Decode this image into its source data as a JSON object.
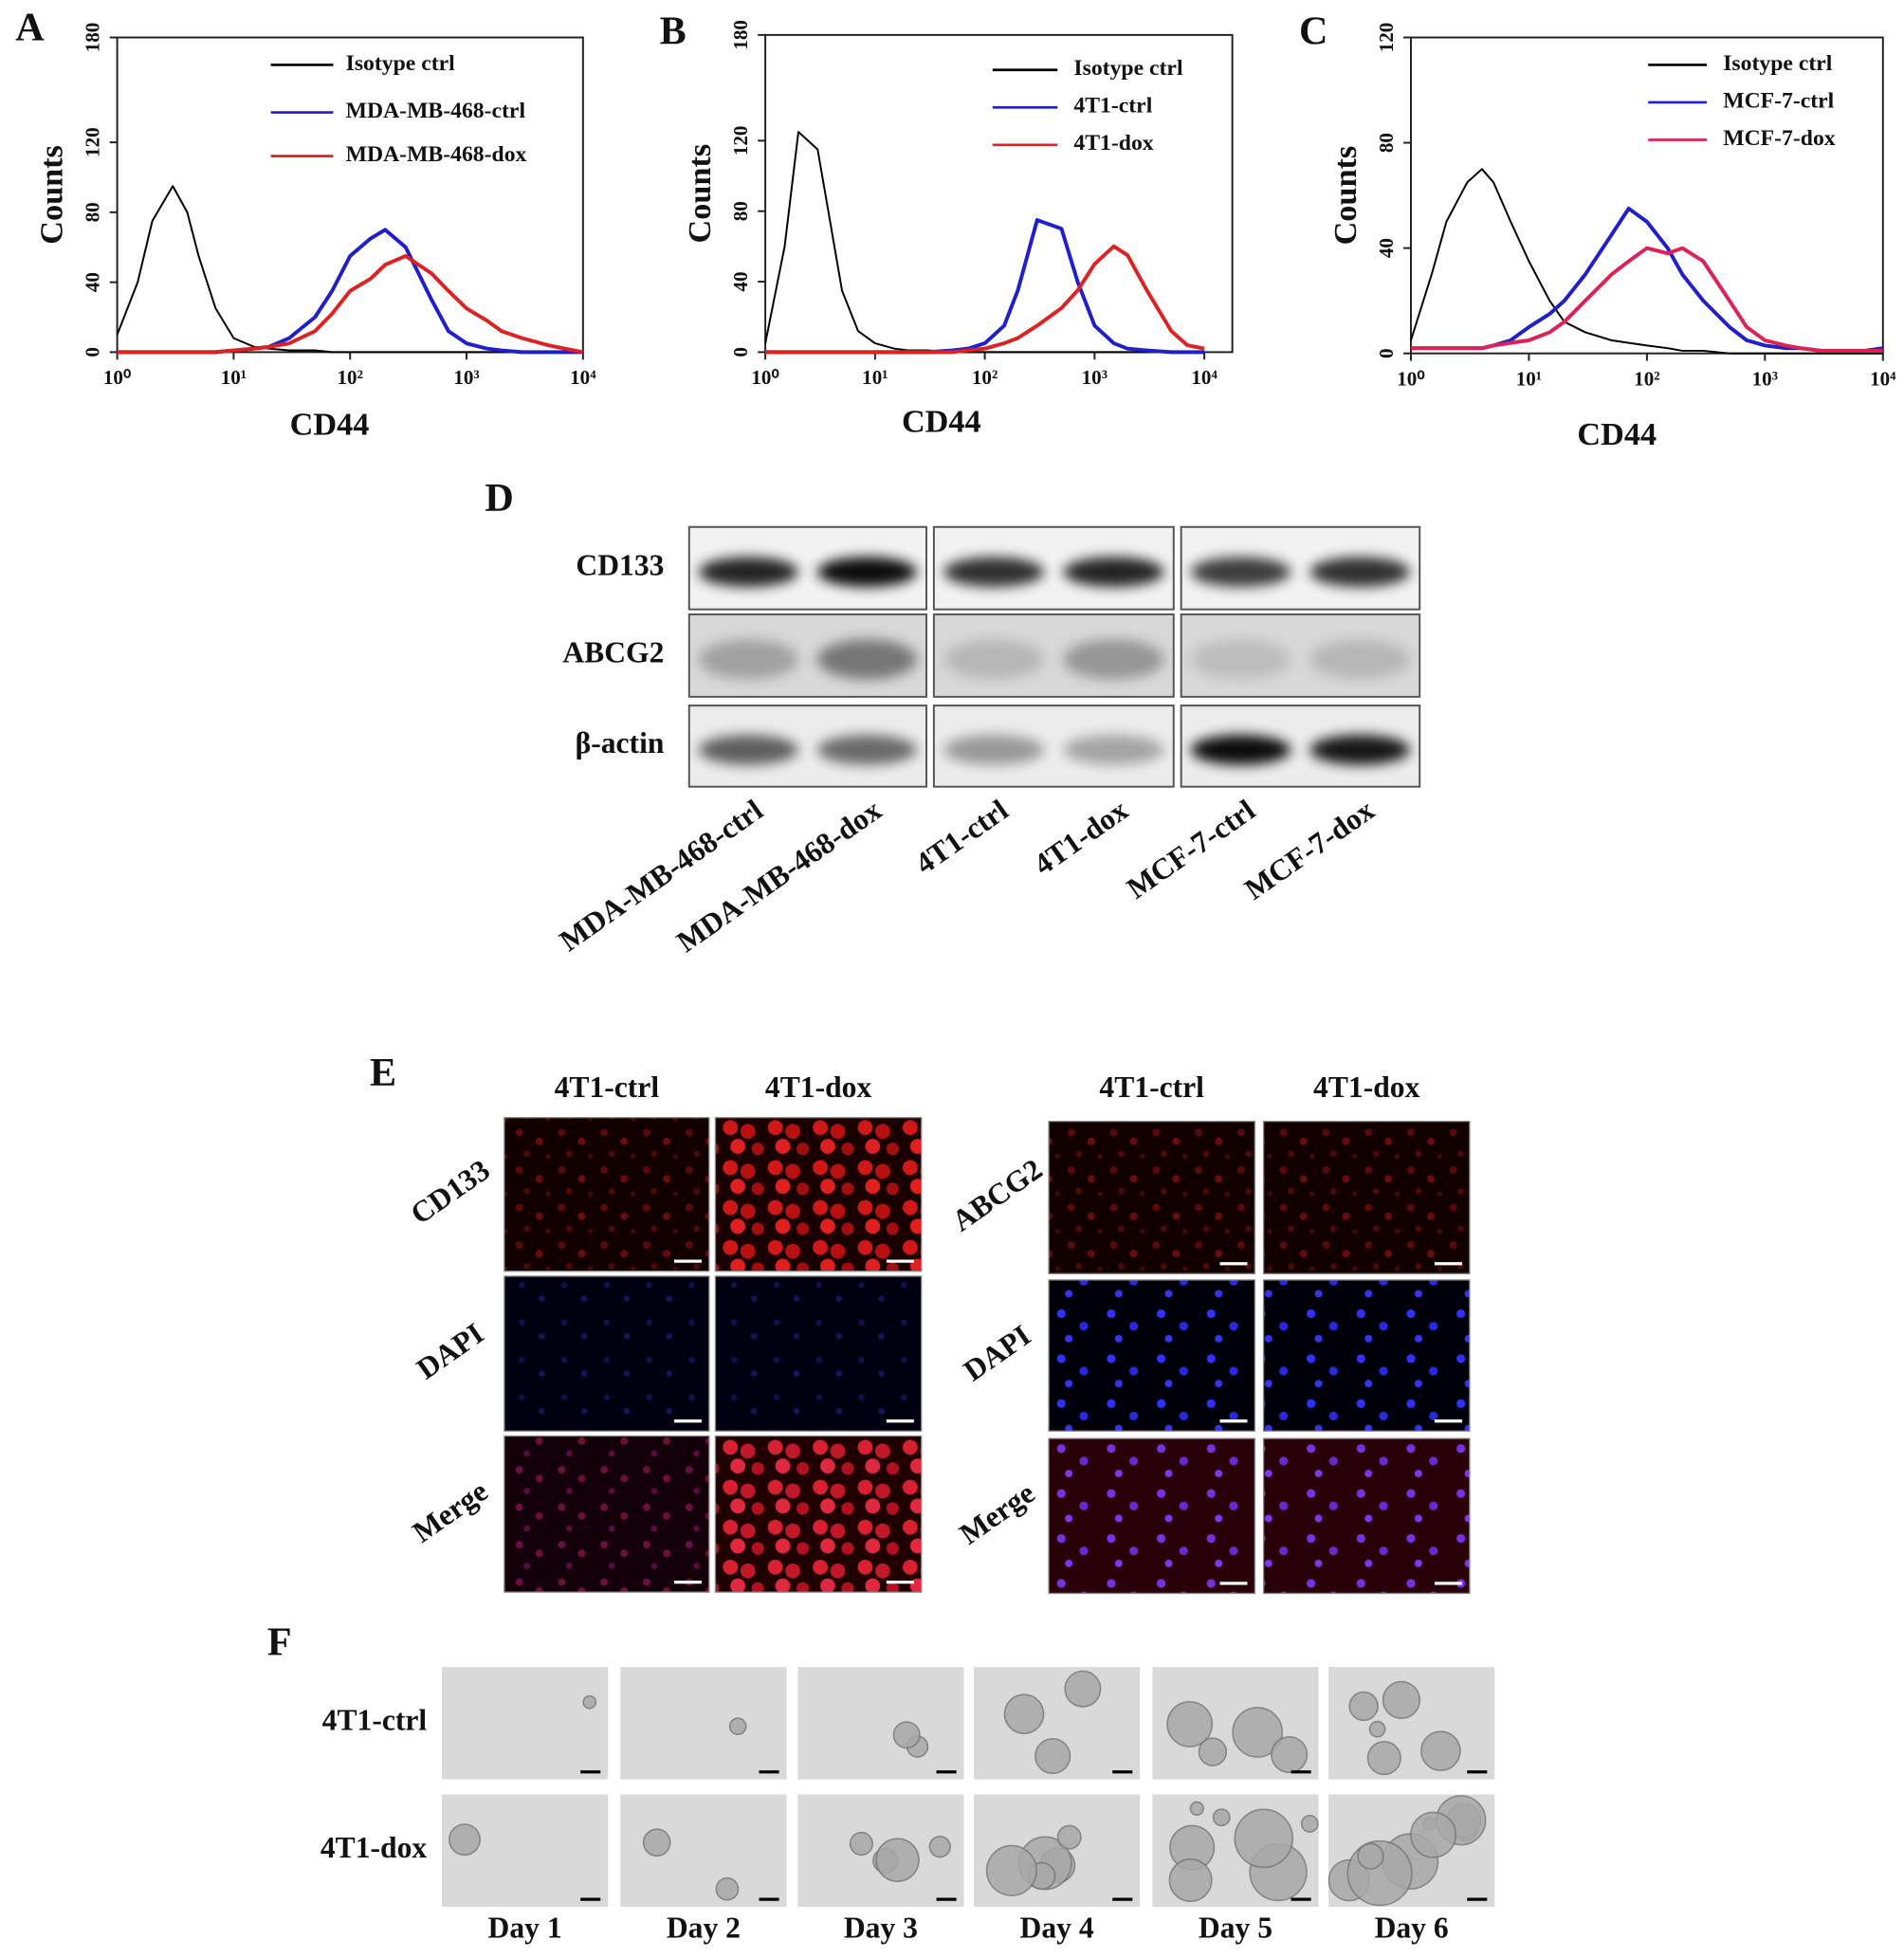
{
  "chart_data": [
    {
      "type": "line",
      "panel_label": "A",
      "x_label": "CD44",
      "y_label": "Counts",
      "log_x": true,
      "legend": "upper right",
      "x": [
        1,
        1.5,
        2,
        3,
        4,
        5,
        7,
        10,
        15,
        20,
        30,
        50,
        70,
        100,
        150,
        200,
        300,
        500,
        700,
        1000,
        1500,
        2000,
        3000,
        5000,
        7000,
        10000
      ],
      "xlim": [
        1,
        10000
      ],
      "xticks": [
        {
          "value": 1,
          "label": "10⁰"
        },
        {
          "value": 10,
          "label": "10¹"
        },
        {
          "value": 100,
          "label": "10²"
        },
        {
          "value": 1000,
          "label": "10³"
        },
        {
          "value": 10000,
          "label": "10⁴"
        }
      ],
      "ylim": [
        0,
        180
      ],
      "yticks": [
        0,
        40,
        80,
        120,
        180
      ],
      "series": [
        {
          "name": "Isotype ctrl",
          "color": "#000000",
          "values": [
            10,
            40,
            75,
            95,
            80,
            55,
            25,
            8,
            3,
            2,
            1,
            1,
            0,
            0,
            0,
            0,
            0,
            0,
            0,
            0,
            0,
            0,
            0,
            0,
            0,
            0
          ]
        },
        {
          "name": "MDA-MB-468-ctrl",
          "color": "#1f1fcc",
          "values": [
            0,
            0,
            0,
            0,
            0,
            0,
            0,
            1,
            2,
            3,
            8,
            20,
            35,
            55,
            65,
            70,
            60,
            30,
            12,
            5,
            2,
            1,
            0,
            0,
            0,
            0
          ]
        },
        {
          "name": "MDA-MB-468-dox",
          "color": "#dd2222",
          "values": [
            0,
            0,
            0,
            0,
            0,
            0,
            0,
            1,
            2,
            3,
            5,
            12,
            22,
            35,
            42,
            50,
            55,
            45,
            35,
            25,
            18,
            12,
            8,
            4,
            2,
            0
          ]
        }
      ]
    },
    {
      "type": "line",
      "panel_label": "B",
      "x_label": "CD44",
      "y_label": "Counts",
      "log_x": true,
      "legend": "upper right",
      "x": [
        1,
        1.5,
        2,
        3,
        4,
        5,
        7,
        10,
        15,
        20,
        30,
        50,
        70,
        100,
        150,
        200,
        300,
        500,
        700,
        1000,
        1500,
        2000,
        3000,
        5000,
        7000,
        10000
      ],
      "xlim": [
        1,
        18000
      ],
      "xticks": [
        {
          "value": 1,
          "label": "10⁰"
        },
        {
          "value": 10,
          "label": "10¹"
        },
        {
          "value": 100,
          "label": "10²"
        },
        {
          "value": 1000,
          "label": "10³"
        },
        {
          "value": 10000,
          "label": "10⁴"
        }
      ],
      "ylim": [
        0,
        180
      ],
      "yticks": [
        0,
        40,
        80,
        120,
        180
      ],
      "series": [
        {
          "name": "Isotype ctrl",
          "color": "#000000",
          "values": [
            5,
            60,
            125,
            115,
            70,
            35,
            12,
            5,
            2,
            1,
            1,
            0,
            0,
            0,
            0,
            0,
            0,
            0,
            0,
            0,
            0,
            0,
            0,
            0,
            0,
            0
          ]
        },
        {
          "name": "4T1-ctrl",
          "color": "#1f1fcc",
          "values": [
            0,
            0,
            0,
            0,
            0,
            0,
            0,
            0,
            0,
            0,
            0,
            1,
            2,
            5,
            15,
            35,
            75,
            70,
            40,
            15,
            5,
            2,
            1,
            0,
            0,
            0
          ]
        },
        {
          "name": "4T1-dox",
          "color": "#dd2222",
          "values": [
            0,
            0,
            0,
            0,
            0,
            0,
            0,
            0,
            0,
            0,
            0,
            0,
            1,
            2,
            5,
            8,
            15,
            25,
            35,
            50,
            60,
            55,
            35,
            12,
            4,
            2
          ]
        }
      ]
    },
    {
      "type": "line",
      "panel_label": "C",
      "x_label": "CD44",
      "y_label": "Counts",
      "log_x": true,
      "legend": "upper right",
      "x": [
        1,
        1.5,
        2,
        3,
        4,
        5,
        7,
        10,
        15,
        20,
        30,
        50,
        70,
        100,
        150,
        200,
        300,
        500,
        700,
        1000,
        1500,
        2000,
        3000,
        5000,
        7000,
        10000
      ],
      "xlim": [
        1,
        10000
      ],
      "xticks": [
        {
          "value": 1,
          "label": "10⁰"
        },
        {
          "value": 10,
          "label": "10¹"
        },
        {
          "value": 100,
          "label": "10²"
        },
        {
          "value": 1000,
          "label": "10³"
        },
        {
          "value": 10000,
          "label": "10⁴"
        }
      ],
      "ylim": [
        0,
        120
      ],
      "yticks": [
        0,
        40,
        80,
        120
      ],
      "series": [
        {
          "name": "Isotype ctrl",
          "color": "#000000",
          "values": [
            5,
            30,
            50,
            65,
            70,
            65,
            50,
            35,
            20,
            12,
            8,
            5,
            4,
            3,
            2,
            1,
            1,
            0,
            0,
            0,
            0,
            0,
            0,
            0,
            0,
            0
          ]
        },
        {
          "name": "MCF-7-ctrl",
          "color": "#1f1fcc",
          "values": [
            2,
            2,
            2,
            2,
            2,
            3,
            5,
            10,
            15,
            20,
            30,
            45,
            55,
            50,
            40,
            30,
            20,
            10,
            5,
            3,
            2,
            2,
            1,
            1,
            1,
            2
          ]
        },
        {
          "name": "MCF-7-dox",
          "color": "#dd2255",
          "values": [
            2,
            2,
            2,
            2,
            2,
            3,
            4,
            5,
            8,
            12,
            20,
            30,
            35,
            40,
            38,
            40,
            35,
            20,
            10,
            5,
            3,
            2,
            1,
            1,
            1,
            1
          ]
        }
      ]
    }
  ],
  "western_blot": {
    "panel_label": "D",
    "rows": [
      "CD133",
      "ABCG2",
      "β-actin"
    ],
    "lanes": [
      "MDA-MB-468-ctrl",
      "MDA-MB-468-dox",
      "4T1-ctrl",
      "4T1-dox",
      "MCF-7-ctrl",
      "MCF-7-dox"
    ]
  },
  "immunofluorescence": {
    "panel_label": "E",
    "groups": [
      {
        "columns": [
          "4T1-ctrl",
          "4T1-dox"
        ],
        "rows": [
          "CD133",
          "DAPI",
          "Merge"
        ]
      },
      {
        "columns": [
          "4T1-ctrl",
          "4T1-dox"
        ],
        "rows": [
          "ABCG2",
          "DAPI",
          "Merge"
        ]
      }
    ]
  },
  "sphere_formation": {
    "panel_label": "F",
    "rows": [
      "4T1-ctrl",
      "4T1-dox"
    ],
    "columns": [
      "Day 1",
      "Day 2",
      "Day 3",
      "Day 4",
      "Day 5",
      "Day 6"
    ]
  }
}
